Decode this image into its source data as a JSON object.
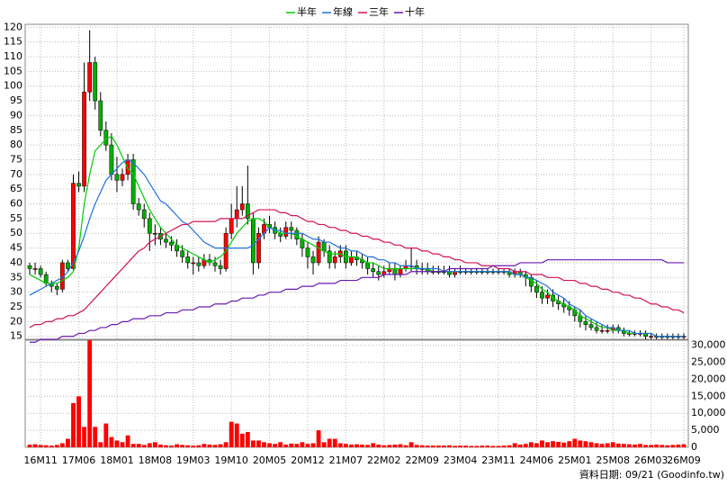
{
  "chart_data": [
    {
      "type": "candlestick",
      "up_color": "#ff0000",
      "down_color": "#00b000",
      "grid": true,
      "ylim": [
        14,
        121
      ],
      "yticks": [
        15,
        20,
        25,
        30,
        35,
        40,
        45,
        50,
        55,
        60,
        65,
        70,
        75,
        80,
        85,
        90,
        95,
        100,
        105,
        110,
        115,
        120
      ],
      "categories": [
        null,
        null,
        "16M11",
        null,
        null,
        null,
        null,
        null,
        null,
        "17M06",
        null,
        null,
        null,
        null,
        null,
        null,
        "18M01",
        null,
        null,
        null,
        null,
        null,
        null,
        "18M08",
        null,
        null,
        null,
        null,
        null,
        null,
        "19M03",
        null,
        null,
        null,
        null,
        null,
        null,
        "19M10",
        null,
        null,
        null,
        null,
        null,
        null,
        "20M05",
        null,
        null,
        null,
        null,
        null,
        null,
        "20M12",
        null,
        null,
        null,
        null,
        null,
        null,
        "21M07",
        null,
        null,
        null,
        null,
        null,
        null,
        "22M02",
        null,
        null,
        null,
        null,
        null,
        null,
        "22M09",
        null,
        null,
        null,
        null,
        null,
        null,
        "23M04",
        null,
        null,
        null,
        null,
        null,
        null,
        "23M11",
        null,
        null,
        null,
        null,
        null,
        null,
        "24M06",
        null,
        null,
        null,
        null,
        null,
        null,
        "25M01",
        null,
        null,
        null,
        null,
        null,
        null,
        "25M08",
        null,
        null,
        null,
        null,
        null,
        null,
        "26M03",
        null,
        null,
        null,
        null,
        null,
        "26M09"
      ],
      "open": [
        39,
        38,
        38,
        36,
        33,
        32,
        31,
        40,
        38,
        67,
        66,
        98,
        108,
        95,
        85,
        80,
        70,
        68,
        70,
        75,
        60,
        58,
        55,
        50,
        50,
        48,
        47,
        46,
        44,
        42,
        40,
        40,
        39,
        41,
        40,
        39,
        38,
        50,
        55,
        58,
        60,
        55,
        40,
        50,
        53,
        52,
        50,
        49,
        52,
        51,
        48,
        45,
        42,
        40,
        47,
        44,
        40,
        42,
        44,
        40,
        42,
        41,
        40,
        38,
        37,
        36,
        37,
        38,
        36,
        38,
        39,
        39,
        38,
        38,
        37,
        37,
        37,
        37,
        36,
        37,
        37,
        37,
        37,
        37,
        37,
        37,
        37,
        37,
        37,
        36,
        37,
        36,
        35,
        32,
        30,
        28,
        29,
        27,
        26,
        25,
        24,
        22,
        20,
        19,
        18,
        17,
        17,
        17,
        18,
        17,
        16,
        16,
        16,
        16,
        15,
        15,
        15,
        15,
        15,
        15,
        15
      ],
      "high": [
        40,
        40,
        39,
        37,
        34,
        33,
        41,
        41,
        70,
        71,
        108,
        119,
        110,
        98,
        88,
        84,
        76,
        72,
        77,
        77,
        62,
        60,
        57,
        53,
        52,
        50,
        49,
        48,
        46,
        44,
        42,
        42,
        43,
        43,
        42,
        41,
        52,
        60,
        66,
        66,
        73,
        57,
        52,
        55,
        56,
        54,
        52,
        54,
        54,
        52,
        50,
        47,
        44,
        49,
        48,
        46,
        44,
        46,
        46,
        44,
        44,
        43,
        42,
        40,
        39,
        39,
        40,
        40,
        39,
        41,
        45,
        41,
        40,
        40,
        39,
        39,
        39,
        39,
        38,
        39,
        38,
        38,
        38,
        38,
        38,
        38,
        38,
        38,
        38,
        38,
        38,
        37,
        36,
        34,
        32,
        31,
        31,
        29,
        28,
        27,
        25,
        24,
        22,
        21,
        20,
        19,
        19,
        19,
        19,
        18,
        17,
        17,
        17,
        17,
        16,
        16,
        16,
        16,
        16,
        16,
        16
      ],
      "low": [
        36,
        36,
        35,
        32,
        30,
        29,
        30,
        37,
        37,
        64,
        64,
        95,
        92,
        83,
        78,
        68,
        64,
        66,
        68,
        58,
        56,
        52,
        44,
        46,
        46,
        45,
        44,
        42,
        40,
        38,
        36,
        37,
        38,
        39,
        37,
        36,
        37,
        48,
        52,
        56,
        53,
        36,
        38,
        48,
        50,
        48,
        47,
        48,
        48,
        46,
        42,
        38,
        36,
        39,
        42,
        38,
        38,
        40,
        38,
        39,
        39,
        38,
        36,
        35,
        34,
        35,
        36,
        34,
        35,
        37,
        37,
        36,
        36,
        36,
        36,
        36,
        36,
        35,
        35,
        36,
        36,
        36,
        36,
        36,
        36,
        36,
        36,
        36,
        35,
        35,
        35,
        32,
        30,
        28,
        26,
        26,
        25,
        24,
        23,
        22,
        20,
        18,
        17,
        17,
        16,
        16,
        16,
        16,
        16,
        15,
        15,
        15,
        15,
        14,
        14,
        14,
        14,
        14,
        14,
        14,
        14
      ],
      "close": [
        38,
        38,
        36,
        33,
        32,
        31,
        40,
        38,
        67,
        66,
        98,
        108,
        95,
        85,
        80,
        70,
        68,
        70,
        75,
        60,
        58,
        55,
        50,
        50,
        48,
        47,
        46,
        44,
        42,
        40,
        40,
        39,
        41,
        40,
        39,
        38,
        50,
        55,
        58,
        60,
        55,
        40,
        50,
        53,
        52,
        50,
        49,
        52,
        51,
        48,
        45,
        42,
        40,
        47,
        44,
        40,
        42,
        44,
        40,
        42,
        41,
        40,
        38,
        37,
        36,
        37,
        38,
        36,
        38,
        39,
        39,
        38,
        38,
        37,
        37,
        37,
        37,
        36,
        37,
        37,
        37,
        37,
        37,
        37,
        37,
        37,
        37,
        37,
        36,
        37,
        36,
        35,
        32,
        30,
        28,
        29,
        27,
        26,
        25,
        24,
        22,
        20,
        19,
        18,
        17,
        17,
        17,
        18,
        17,
        16,
        16,
        16,
        16,
        15,
        15,
        15,
        15,
        15,
        15,
        15,
        15
      ],
      "series": [
        {
          "name": "半年",
          "color": "#00cc00",
          "values": [
            36,
            35,
            34,
            33,
            33,
            33,
            34,
            35,
            37,
            45,
            60,
            70,
            78,
            80,
            82,
            83,
            80,
            76,
            72,
            70,
            66,
            62,
            58,
            55,
            52,
            50,
            48,
            46,
            45,
            44,
            43,
            42,
            41,
            40,
            41,
            42,
            44,
            47,
            50,
            52,
            54,
            55,
            55,
            54,
            52,
            51,
            50,
            50,
            50,
            49,
            48,
            47,
            46,
            45,
            44,
            43,
            43,
            43,
            42,
            42,
            42,
            41,
            40,
            40,
            39,
            38,
            38,
            38,
            38,
            38,
            38,
            38,
            38,
            38,
            37,
            37,
            37,
            37,
            37,
            37,
            37,
            37,
            37,
            37,
            37,
            37,
            37,
            37,
            37,
            36,
            36,
            35,
            34,
            33,
            31,
            30,
            28,
            27,
            26,
            25,
            24,
            22,
            21,
            20,
            19,
            18,
            18,
            17,
            17,
            17,
            16,
            16,
            16,
            16,
            16,
            15,
            15,
            15,
            15,
            15,
            15
          ]
        },
        {
          "name": "年線",
          "color": "#2070e0",
          "values": [
            29,
            30,
            31,
            32,
            33,
            34,
            35,
            37,
            40,
            44,
            49,
            55,
            60,
            64,
            68,
            70,
            72,
            74,
            75,
            74,
            72,
            70,
            67,
            64,
            61,
            60,
            58,
            56,
            54,
            53,
            51,
            49,
            47,
            46,
            45,
            45,
            45,
            45,
            45,
            45,
            45,
            46,
            48,
            50,
            52,
            51,
            51,
            50,
            50,
            50,
            50,
            49,
            48,
            48,
            47,
            47,
            46,
            45,
            45,
            44,
            44,
            43,
            42,
            42,
            41,
            41,
            40,
            40,
            39,
            39,
            39,
            38,
            38,
            38,
            38,
            38,
            37,
            37,
            37,
            37,
            37,
            37,
            37,
            37,
            37,
            37,
            37,
            37,
            37,
            36,
            36,
            35,
            35,
            34,
            33,
            32,
            30,
            29,
            28,
            26,
            25,
            24,
            22,
            21,
            20,
            19,
            18,
            18,
            17,
            17,
            17,
            16,
            16,
            16,
            16,
            15,
            15,
            15,
            15,
            15,
            15
          ]
        },
        {
          "name": "三年",
          "color": "#d0105a",
          "values": [
            18,
            19,
            19,
            20,
            20,
            21,
            21,
            22,
            22,
            23,
            24,
            26,
            28,
            30,
            32,
            34,
            36,
            38,
            40,
            42,
            44,
            45,
            47,
            48,
            49,
            50,
            51,
            52,
            53,
            53,
            54,
            54,
            54,
            54,
            54,
            55,
            55,
            55,
            55,
            55,
            56,
            57,
            58,
            58,
            58,
            58,
            57,
            57,
            56,
            56,
            55,
            54,
            54,
            53,
            53,
            52,
            52,
            51,
            51,
            50,
            50,
            49,
            49,
            48,
            48,
            47,
            47,
            46,
            46,
            45,
            45,
            45,
            44,
            44,
            43,
            43,
            42,
            42,
            41,
            41,
            40,
            40,
            40,
            39,
            39,
            39,
            38,
            38,
            38,
            37,
            37,
            37,
            36,
            36,
            36,
            35,
            35,
            35,
            34,
            34,
            34,
            33,
            33,
            32,
            32,
            31,
            31,
            30,
            30,
            29,
            29,
            28,
            28,
            27,
            26,
            26,
            25,
            25,
            24,
            24,
            23
          ]
        },
        {
          "name": "十年",
          "color": "#6a1ab0",
          "values": [
            13,
            13,
            14,
            14,
            14,
            14,
            15,
            15,
            15,
            16,
            16,
            17,
            17,
            18,
            18,
            19,
            19,
            20,
            20,
            21,
            21,
            21,
            22,
            22,
            22,
            23,
            23,
            23,
            24,
            24,
            24,
            25,
            25,
            25,
            26,
            26,
            26,
            27,
            27,
            28,
            28,
            28,
            29,
            29,
            30,
            30,
            30,
            31,
            31,
            31,
            32,
            32,
            32,
            33,
            33,
            33,
            33,
            34,
            34,
            34,
            34,
            35,
            35,
            35,
            35,
            36,
            36,
            36,
            36,
            36,
            37,
            37,
            37,
            37,
            37,
            37,
            37,
            38,
            38,
            38,
            38,
            38,
            38,
            38,
            38,
            39,
            39,
            39,
            39,
            39,
            40,
            40,
            40,
            40,
            40,
            41,
            41,
            41,
            41,
            41,
            41,
            41,
            41,
            41,
            41,
            41,
            41,
            41,
            41,
            41,
            41,
            41,
            41,
            41,
            41,
            41,
            41,
            40,
            40,
            40,
            40
          ]
        }
      ],
      "footer": "資料日期: 09/21  (Goodinfo.tw)"
    },
    {
      "type": "bar",
      "color": "#ff0000",
      "grid": true,
      "ylim": [
        0,
        31500
      ],
      "yticks": [
        0,
        {
          "value": 5000,
          "label": "5,000"
        },
        {
          "value": 10000,
          "label": "10,000"
        },
        {
          "value": 15000,
          "label": "15,000"
        },
        {
          "value": 20000,
          "label": "20,000"
        },
        {
          "value": 25000,
          "label": "25,000"
        },
        {
          "value": 30000,
          "label": "30,000"
        }
      ],
      "values": [
        800,
        900,
        700,
        600,
        500,
        700,
        1200,
        2500,
        13000,
        15000,
        6000,
        32000,
        6000,
        1500,
        7000,
        3000,
        2000,
        1500,
        3500,
        1000,
        1000,
        700,
        1200,
        1500,
        800,
        600,
        500,
        900,
        700,
        600,
        500,
        600,
        1000,
        800,
        700,
        900,
        1500,
        7500,
        7000,
        4000,
        4500,
        2000,
        2000,
        1500,
        1200,
        1000,
        1500,
        800,
        1100,
        1000,
        1500,
        1000,
        1200,
        5000,
        1500,
        2500,
        2500,
        1200,
        1000,
        800,
        900,
        800,
        700,
        1200,
        800,
        600,
        700,
        800,
        900,
        600,
        1500,
        700,
        600,
        500,
        500,
        500,
        500,
        600,
        400,
        500,
        500,
        400,
        400,
        500,
        500,
        400,
        400,
        500,
        600,
        1200,
        800,
        1000,
        1500,
        1200,
        2000,
        1500,
        1800,
        1600,
        1400,
        1800,
        2500,
        2000,
        1800,
        1500,
        1200,
        1000,
        1200,
        1500,
        1100,
        1000,
        900,
        800,
        1000,
        700,
        700,
        800,
        700,
        600,
        700,
        800,
        900
      ]
    }
  ]
}
